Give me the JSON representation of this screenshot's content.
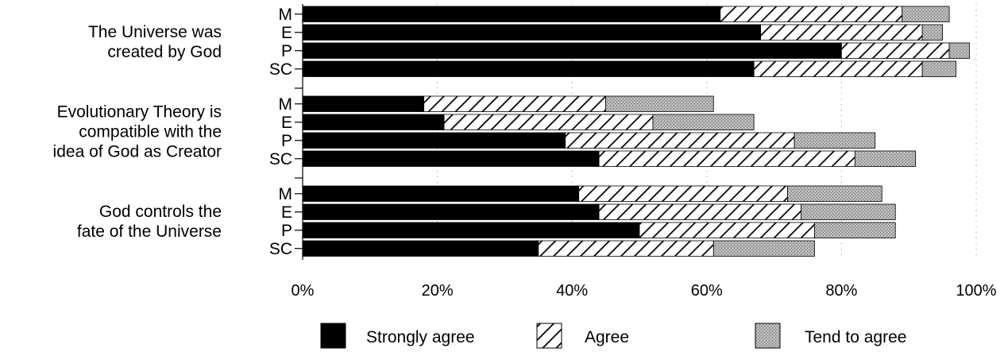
{
  "chart_data": {
    "type": "bar",
    "orientation": "horizontal",
    "stacked": true,
    "title": "",
    "xlabel": "",
    "ylabel": "",
    "xlim": [
      0,
      100
    ],
    "x_ticks": [
      "0%",
      "20%",
      "40%",
      "60%",
      "80%",
      "100%"
    ],
    "groups": [
      {
        "label_lines": [
          "The Universe was",
          "created by God"
        ],
        "categories": [
          "M",
          "E",
          "P",
          "SC"
        ]
      },
      {
        "label_lines": [
          "Evolutionary Theory is",
          "compatible with the",
          "idea of God as Creator"
        ],
        "categories": [
          "M",
          "E",
          "P",
          "SC"
        ]
      },
      {
        "label_lines": [
          "God controls the",
          "fate of the Universe"
        ],
        "categories": [
          "M",
          "E",
          "P",
          "SC"
        ]
      }
    ],
    "series": [
      {
        "name": "Strongly agree",
        "fill": "solid",
        "color": "#000000",
        "values": [
          [
            62,
            68,
            80,
            67
          ],
          [
            18,
            21,
            39,
            44
          ],
          [
            41,
            44,
            50,
            35
          ]
        ]
      },
      {
        "name": "Agree",
        "fill": "diagonal-hatch",
        "color": "#000000",
        "values": [
          [
            27,
            24,
            16,
            25
          ],
          [
            27,
            31,
            34,
            38
          ],
          [
            31,
            30,
            26,
            26
          ]
        ]
      },
      {
        "name": "Tend to agree",
        "fill": "grey-dots",
        "color": "#a8a8a8",
        "values": [
          [
            7,
            3,
            3,
            5
          ],
          [
            16,
            15,
            12,
            9
          ],
          [
            14,
            14,
            12,
            15
          ]
        ]
      }
    ],
    "legend_position": "bottom",
    "grid": "vertical dotted"
  }
}
